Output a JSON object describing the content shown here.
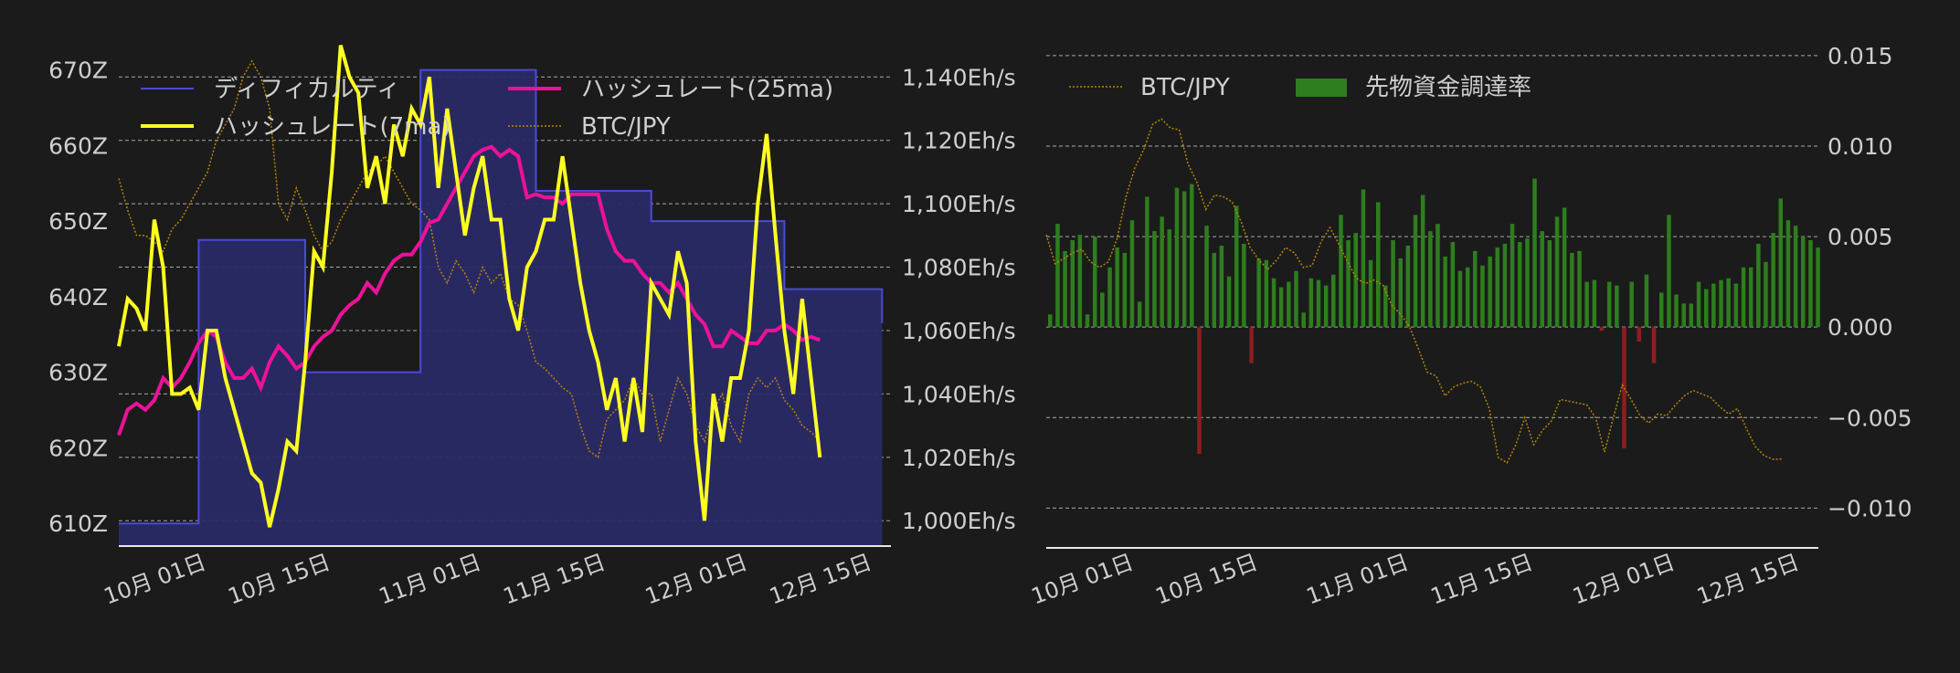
{
  "colors": {
    "background": "#1b1b1b",
    "text": "#cfcfcf",
    "grid": "#d9d9d9",
    "difficulty_line": "#4a4ad8",
    "difficulty_fill": "#2a2a66",
    "hashrate_7ma": "#ffff22",
    "hashrate_25ma": "#ee1199",
    "btc_jpy": "#b8860b",
    "funding_positive": "#2e7d1e",
    "funding_negative": "#8b1e22",
    "axis_line": "#e8e8e8"
  },
  "chart_data": [
    {
      "type": "line",
      "title": "",
      "legend_position": "top-left",
      "grid": true,
      "x_ticks": [
        "10月 01日",
        "10月 15日",
        "11月 01日",
        "11月 15日",
        "12月 01日",
        "12月 15日"
      ],
      "x_range": [
        "2022-09-21",
        "2022-12-17"
      ],
      "y_left": {
        "ticks": [
          "610Z",
          "620Z",
          "630Z",
          "640Z",
          "650Z",
          "660Z",
          "670Z"
        ],
        "range": [
          607,
          672
        ],
        "unit": "Z"
      },
      "y_right": {
        "ticks": [
          "1,000Eh/s",
          "1,020Eh/s",
          "1,040Eh/s",
          "1,060Eh/s",
          "1,080Eh/s",
          "1,100Eh/s",
          "1,120Eh/s",
          "1,140Eh/s"
        ],
        "range": [
          992,
          1147
        ],
        "unit": "Eh/s"
      },
      "series": [
        {
          "name": "ディフィカルティ",
          "kind": "step-area",
          "axis": "left",
          "x": [
            "2022-09-21",
            "2022-09-30",
            "2022-10-12",
            "2022-10-25",
            "2022-11-07",
            "2022-11-20",
            "2022-12-05",
            "2022-12-16"
          ],
          "values": [
            610,
            647.5,
            630,
            670,
            654,
            650,
            641,
            636.5
          ]
        },
        {
          "name": "ハッシュレート(7ma)",
          "axis": "right",
          "x_start": "2022-09-21",
          "values": [
            1055,
            1070,
            1067,
            1060,
            1095,
            1080,
            1040,
            1040,
            1042,
            1035,
            1060,
            1060,
            1045,
            1035,
            1025,
            1015,
            1012,
            998,
            1010,
            1025,
            1022,
            1050,
            1085,
            1080,
            1110,
            1150,
            1140,
            1135,
            1105,
            1115,
            1100,
            1125,
            1115,
            1130,
            1125,
            1140,
            1105,
            1130,
            1110,
            1090,
            1105,
            1115,
            1095,
            1095,
            1070,
            1060,
            1080,
            1085,
            1095,
            1095,
            1115,
            1095,
            1075,
            1060,
            1050,
            1035,
            1045,
            1025,
            1045,
            1028,
            1075,
            1070,
            1065,
            1085,
            1075,
            1025,
            1000,
            1040,
            1025,
            1045,
            1045,
            1060,
            1100,
            1122,
            1090,
            1060,
            1040,
            1070,
            1045,
            1020
          ],
          "legend_row": 2
        },
        {
          "name": "ハッシュレート(25ma)",
          "axis": "right",
          "x_start": "2022-09-21",
          "values": [
            1027,
            1035,
            1037,
            1035,
            1038,
            1045,
            1042,
            1045,
            1050,
            1056,
            1060,
            1058,
            1050,
            1045,
            1045,
            1048,
            1042,
            1050,
            1055,
            1052,
            1048,
            1050,
            1055,
            1058,
            1060,
            1065,
            1068,
            1070,
            1075,
            1072,
            1078,
            1082,
            1084,
            1084,
            1088,
            1094,
            1095,
            1100,
            1105,
            1110,
            1115,
            1117,
            1118,
            1115,
            1117,
            1115,
            1102,
            1103,
            1102,
            1102,
            1100,
            1103,
            1103,
            1103,
            1103,
            1092,
            1085,
            1082,
            1082,
            1078,
            1075,
            1075,
            1072,
            1075,
            1070,
            1065,
            1062,
            1055,
            1055,
            1060,
            1058,
            1056,
            1056,
            1060,
            1060,
            1062,
            1060,
            1057,
            1058,
            1057
          ]
        },
        {
          "name": "BTC/JPY",
          "axis": "right",
          "style": "dotted",
          "x_start": "2022-09-21",
          "values": [
            1108,
            1098,
            1090,
            1090,
            1088,
            1085,
            1092,
            1095,
            1100,
            1105,
            1110,
            1120,
            1125,
            1130,
            1140,
            1145,
            1140,
            1130,
            1100,
            1095,
            1105,
            1098,
            1090,
            1085,
            1088,
            1095,
            1100,
            1105,
            1110,
            1112,
            1115,
            1110,
            1105,
            1100,
            1098,
            1095,
            1080,
            1075,
            1082,
            1078,
            1072,
            1080,
            1075,
            1078,
            1070,
            1068,
            1060,
            1050,
            1048,
            1045,
            1042,
            1040,
            1030,
            1022,
            1020,
            1032,
            1035,
            1038,
            1045,
            1040,
            1040,
            1025,
            1035,
            1045,
            1040,
            1030,
            1025,
            1035,
            1040,
            1030,
            1025,
            1040,
            1045,
            1042,
            1045,
            1038,
            1035,
            1030,
            1028,
            1025
          ]
        }
      ]
    },
    {
      "type": "bar",
      "title": "",
      "legend_position": "top-left",
      "grid": true,
      "x_ticks": [
        "10月 01日",
        "10月 15日",
        "11月 01日",
        "11月 15日",
        "12月 01日",
        "12月 15日"
      ],
      "x_range": [
        "2022-09-21",
        "2022-12-17"
      ],
      "y_right": {
        "ticks": [
          "0.015",
          "0.010",
          "0.005",
          "0.000",
          "−0.005",
          "−0.010"
        ],
        "range": [
          -0.0122,
          0.0158
        ]
      },
      "series": [
        {
          "name": "先物資金調達率",
          "kind": "bar",
          "x_start": "2022-09-21",
          "values": [
            0.0007,
            0.0057,
            0.0042,
            0.0048,
            0.0051,
            0.0007,
            0.005,
            0.0019,
            0.0033,
            0.0044,
            0.0041,
            0.0059,
            0.0014,
            0.0072,
            0.0053,
            0.0061,
            0.0054,
            0.0077,
            0.0075,
            0.0079,
            -0.007,
            0.0056,
            0.0041,
            0.0045,
            0.0028,
            0.0067,
            0.0046,
            -0.002,
            0.0038,
            0.0037,
            0.0027,
            0.0022,
            0.0025,
            0.0031,
            0.0008,
            0.0027,
            0.0026,
            0.0023,
            0.0029,
            0.0062,
            0.0048,
            0.0052,
            0.0076,
            0.0037,
            0.0069,
            0.0023,
            0.0048,
            0.0038,
            0.0045,
            0.0062,
            0.0073,
            0.0053,
            0.0057,
            0.0039,
            0.0047,
            0.0031,
            0.0033,
            0.0042,
            0.0034,
            0.0039,
            0.0044,
            0.0046,
            0.0057,
            0.0047,
            0.0049,
            0.0082,
            0.0053,
            0.0048,
            0.0061,
            0.0066,
            0.0041,
            0.0042,
            0.0025,
            0.0026,
            -0.0002,
            0.0025,
            0.0023,
            -0.0067,
            0.0025,
            -0.0008,
            0.0029,
            -0.002,
            0.0019,
            0.0062,
            0.0018,
            0.0013,
            0.0013,
            0.0025,
            0.0021,
            0.0024,
            0.0026,
            0.0027,
            0.0024,
            0.0033,
            0.0033,
            0.0046,
            0.0036,
            0.0052,
            0.0071,
            0.0059,
            0.0056,
            0.005,
            0.0048,
            0.0044
          ],
          "negative_values_note": ""
        },
        {
          "name": "BTC/JPY",
          "axis": "none",
          "style": "dotted",
          "x_start": "2022-09-21",
          "values": [
            0.0051,
            0.0035,
            0.0038,
            0.0041,
            0.0043,
            0.0036,
            0.0033,
            0.0036,
            0.0049,
            0.0072,
            0.0088,
            0.0098,
            0.0112,
            0.0115,
            0.011,
            0.0109,
            0.009,
            0.008,
            0.0065,
            0.0073,
            0.0072,
            0.0069,
            0.0058,
            0.0044,
            0.0037,
            0.0032,
            0.0037,
            0.0044,
            0.0041,
            0.0033,
            0.0034,
            0.0047,
            0.0055,
            0.0046,
            0.0036,
            0.0027,
            0.0024,
            0.0026,
            0.0023,
            0.0012,
            0.0007,
            0.0,
            -0.0012,
            -0.0025,
            -0.0027,
            -0.0038,
            -0.0033,
            -0.0031,
            -0.003,
            -0.0033,
            -0.0045,
            -0.0072,
            -0.0075,
            -0.0065,
            -0.005,
            -0.0065,
            -0.0057,
            -0.0052,
            -0.004,
            -0.0041,
            -0.0042,
            -0.0043,
            -0.005,
            -0.0069,
            -0.005,
            -0.0032,
            -0.004,
            -0.0049,
            -0.0053,
            -0.0048,
            -0.0049,
            -0.0043,
            -0.0038,
            -0.0035,
            -0.0037,
            -0.0039,
            -0.0044,
            -0.0048,
            -0.0045,
            -0.0056,
            -0.0066,
            -0.0071,
            -0.0073,
            -0.0073
          ]
        }
      ]
    }
  ]
}
